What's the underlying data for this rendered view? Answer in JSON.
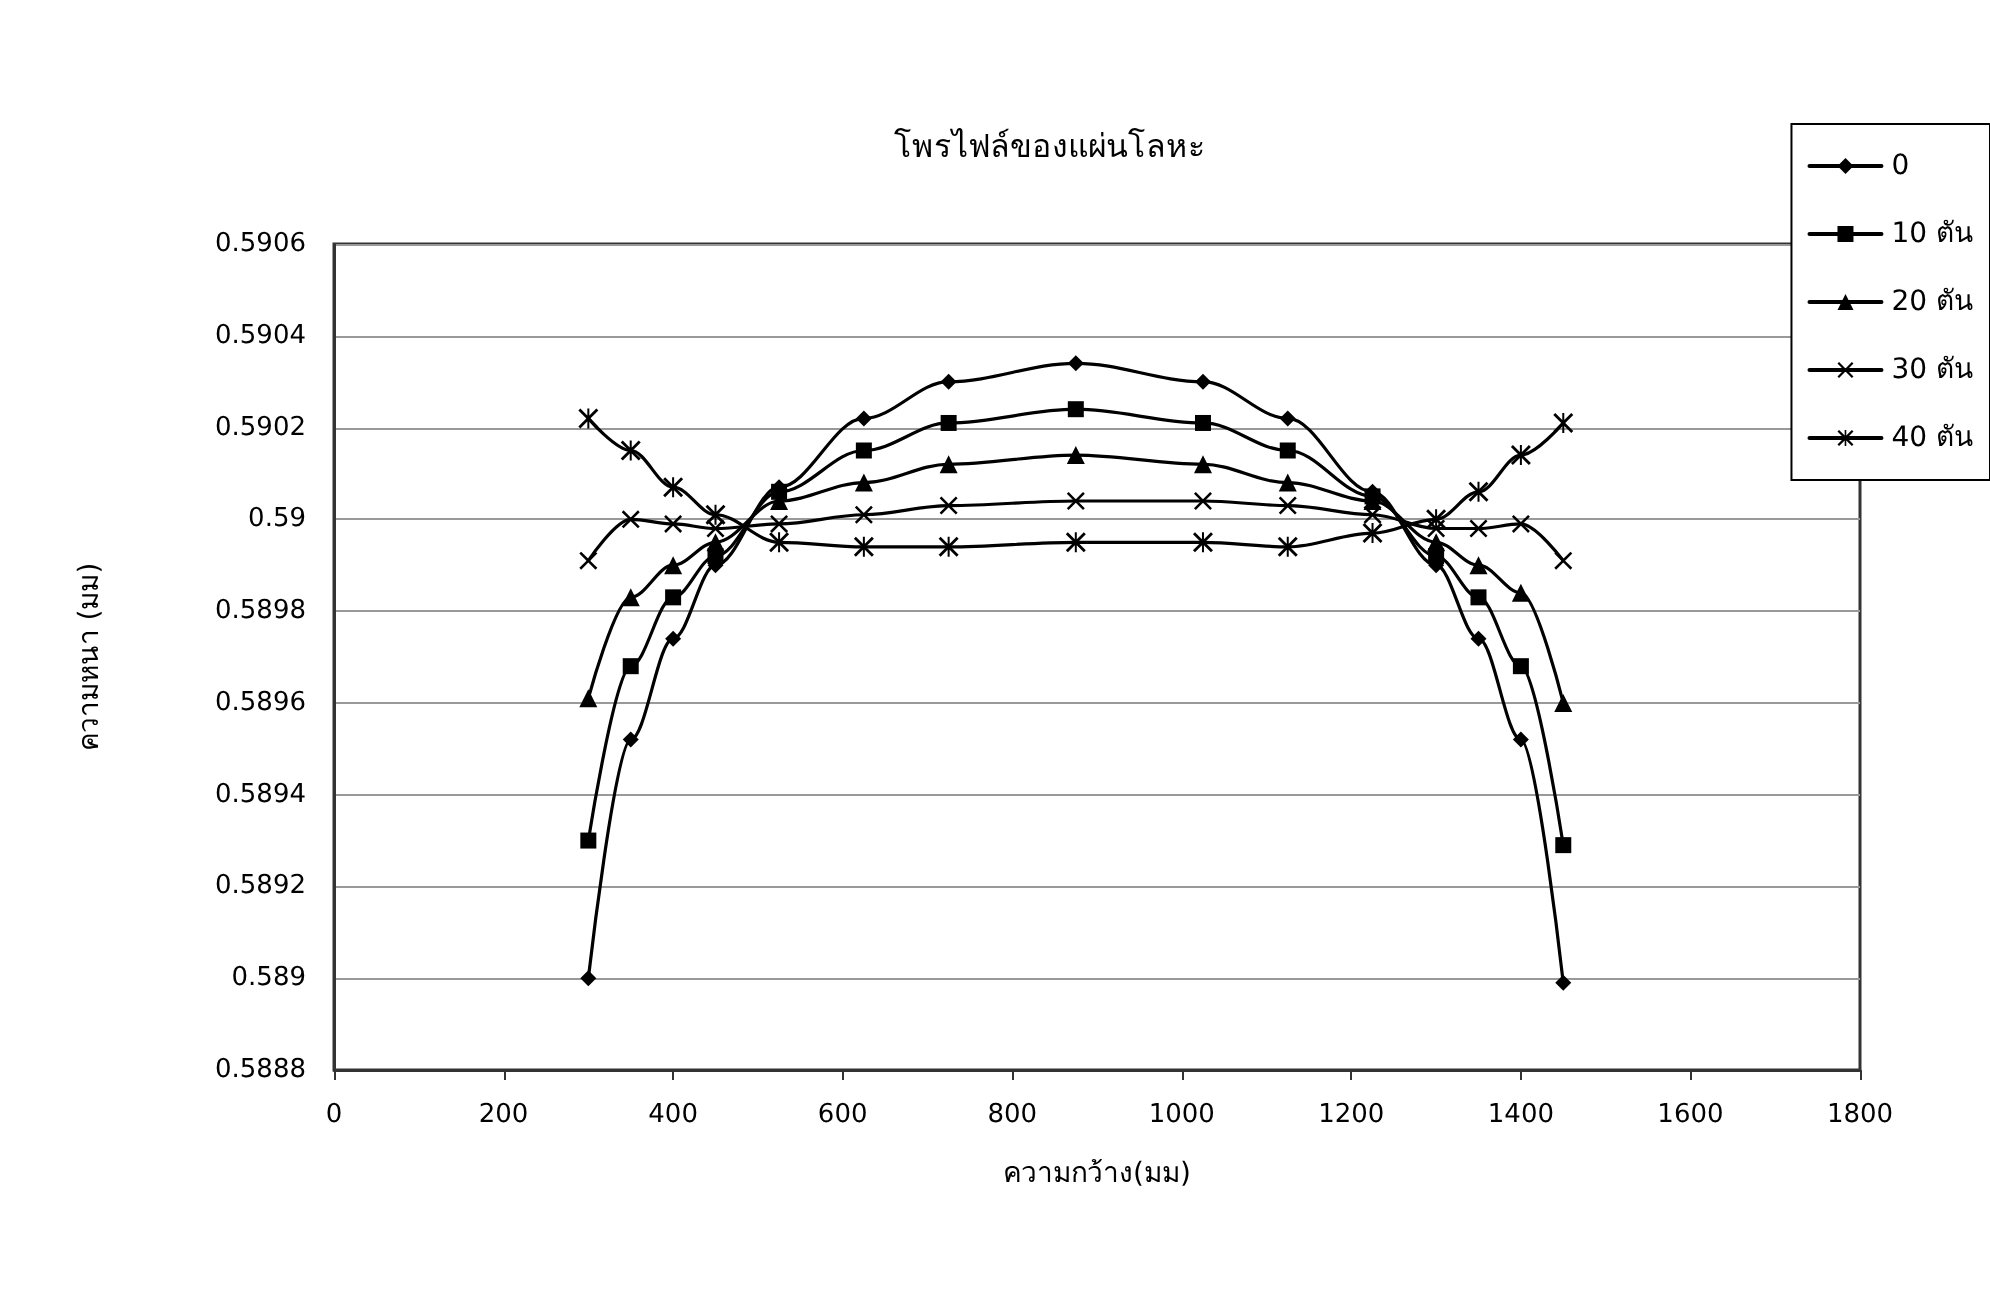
{
  "chart_data": {
    "type": "line",
    "title": "โพรไฟล์ของแผ่นโลหะ",
    "xlabel": "ความกว้าง(มม)",
    "ylabel": "ความหนา (มม)",
    "x": [
      300,
      350,
      400,
      450,
      525,
      625,
      725,
      875,
      1025,
      1125,
      1225,
      1300,
      1350,
      1400,
      1450
    ],
    "xlim": [
      0,
      1800
    ],
    "xticks": [
      0,
      200,
      400,
      600,
      800,
      1000,
      1200,
      1400,
      1600,
      1800
    ],
    "ylim": [
      0.5888,
      0.5906
    ],
    "yticks": [
      0.5888,
      0.589,
      0.5892,
      0.5894,
      0.5896,
      0.5898,
      0.59,
      0.5902,
      0.5904,
      0.5906
    ],
    "grid": "y",
    "legend": "top right",
    "line_style": "solid",
    "series": [
      {
        "name": "0",
        "color": "#000000",
        "marker": "diamond",
        "values": [
          0.589,
          0.58952,
          0.58974,
          0.5899,
          0.59007,
          0.59022,
          0.5903,
          0.59034,
          0.5903,
          0.59022,
          0.59006,
          0.5899,
          0.58974,
          0.58952,
          0.58899
        ]
      },
      {
        "name": "10 ตัน",
        "color": "#000000",
        "marker": "square",
        "values": [
          0.5893,
          0.58968,
          0.58983,
          0.58992,
          0.59006,
          0.59015,
          0.59021,
          0.59024,
          0.59021,
          0.59015,
          0.59005,
          0.58992,
          0.58983,
          0.58968,
          0.58929
        ]
      },
      {
        "name": "20 ตัน",
        "color": "#000000",
        "marker": "triangle",
        "values": [
          0.58961,
          0.58983,
          0.5899,
          0.58995,
          0.59004,
          0.59008,
          0.59012,
          0.59014,
          0.59012,
          0.59008,
          0.59004,
          0.58995,
          0.5899,
          0.58984,
          0.5896
        ]
      },
      {
        "name": "30 ตัน",
        "color": "#000000",
        "marker": "cross",
        "values": [
          0.58991,
          0.59,
          0.58999,
          0.58998,
          0.58999,
          0.59001,
          0.59003,
          0.59004,
          0.59004,
          0.59003,
          0.59001,
          0.58998,
          0.58998,
          0.58999,
          0.58991
        ]
      },
      {
        "name": "40 ตัน",
        "color": "#000000",
        "marker": "star",
        "values": [
          0.59022,
          0.59015,
          0.59007,
          0.59001,
          0.58995,
          0.58994,
          0.58994,
          0.58995,
          0.58995,
          0.58994,
          0.58997,
          0.59,
          0.59006,
          0.59014,
          0.59021
        ]
      }
    ]
  }
}
